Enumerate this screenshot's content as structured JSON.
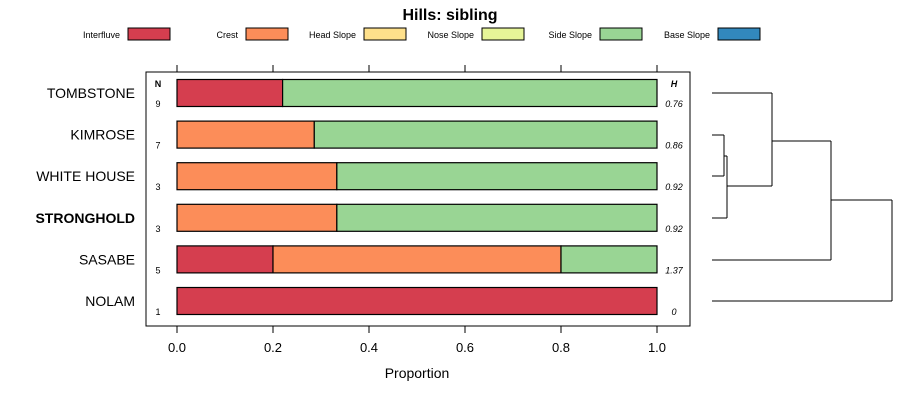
{
  "chart_data": {
    "type": "bar",
    "orientation": "horizontal",
    "stacked": true,
    "title": "Hills: sibling",
    "xlabel": "Proportion",
    "xlim": [
      0,
      1
    ],
    "xticks": [
      "0.0",
      "0.2",
      "0.4",
      "0.6",
      "0.8",
      "1.0"
    ],
    "xtick_values": [
      0,
      0.2,
      0.4,
      0.6,
      0.8,
      1.0
    ],
    "n_header": "N",
    "h_header": "H",
    "legend": [
      {
        "name": "Interfluve",
        "color": "#d53e4f"
      },
      {
        "name": "Crest",
        "color": "#fc8d59"
      },
      {
        "name": "Head Slope",
        "color": "#fee08b"
      },
      {
        "name": "Nose Slope",
        "color": "#e6f598"
      },
      {
        "name": "Side Slope",
        "color": "#99d594"
      },
      {
        "name": "Base Slope",
        "color": "#3288bd"
      }
    ],
    "rows": [
      {
        "name": "TOMBSTONE",
        "bold": false,
        "n": "9",
        "h": "0.76",
        "values": [
          0.22,
          0,
          0,
          0,
          0.78,
          0
        ]
      },
      {
        "name": "KIMROSE",
        "bold": false,
        "n": "7",
        "h": "0.86",
        "values": [
          0,
          0.286,
          0,
          0,
          0.714,
          0
        ]
      },
      {
        "name": "WHITE HOUSE",
        "bold": false,
        "n": "3",
        "h": "0.92",
        "values": [
          0,
          0.333,
          0,
          0,
          0.667,
          0
        ]
      },
      {
        "name": "STRONGHOLD",
        "bold": true,
        "n": "3",
        "h": "0.92",
        "values": [
          0,
          0.333,
          0,
          0,
          0.667,
          0
        ]
      },
      {
        "name": "SASABE",
        "bold": false,
        "n": "5",
        "h": "1.37",
        "values": [
          0.2,
          0.6,
          0,
          0,
          0.2,
          0
        ]
      },
      {
        "name": "NOLAM",
        "bold": false,
        "n": "1",
        "h": "0",
        "values": [
          1.0,
          0,
          0,
          0,
          0,
          0
        ]
      }
    ],
    "dendrogram": true
  }
}
